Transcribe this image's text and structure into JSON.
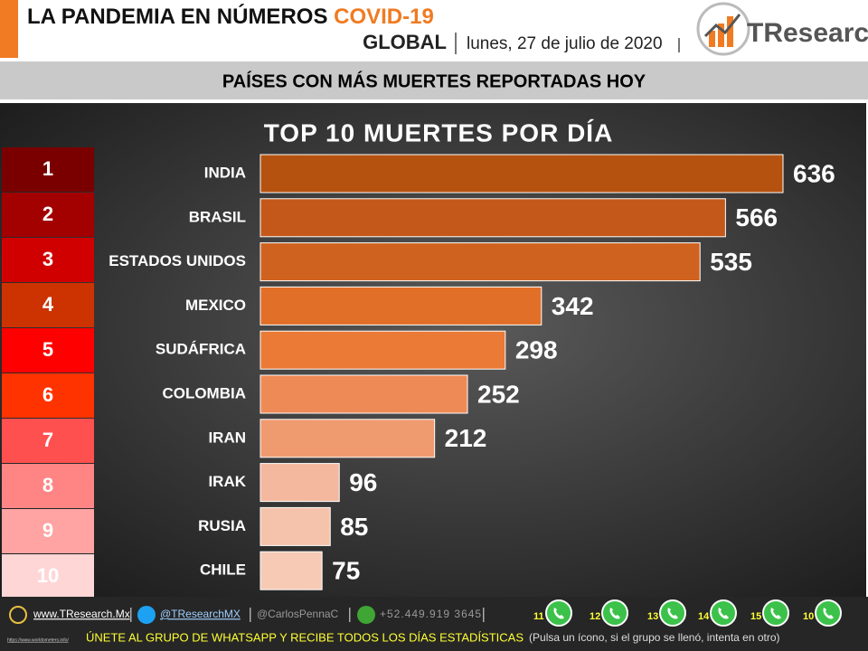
{
  "header": {
    "title": "LA PANDEMIA EN NÚMEROS",
    "title_highlight": "COVID-19",
    "scope": "GLOBAL",
    "date": "lunes, 27 de julio de 2020",
    "logo": "TResearch"
  },
  "section_title": "PAÍSES CON MÁS MUERTES REPORTADAS HOY",
  "chart_data": {
    "type": "bar",
    "orientation": "horizontal",
    "title": "TOP 10 MUERTES POR DÍA",
    "categories": [
      "INDIA",
      "BRASIL",
      "ESTADOS UNIDOS",
      "MEXICO",
      "SUDÁFRICA",
      "COLOMBIA",
      "IRAN",
      "IRAK",
      "RUSIA",
      "CHILE"
    ],
    "values": [
      636,
      566,
      535,
      342,
      298,
      252,
      212,
      96,
      85,
      75
    ],
    "colors": [
      "#b5520f",
      "#c4581a",
      "#d0621f",
      "#e26f27",
      "#ea7a35",
      "#ee8a55",
      "#f09a70",
      "#f4b89e",
      "#f5c2ab",
      "#f6cab5"
    ],
    "ranks": [
      1,
      2,
      3,
      4,
      5,
      6,
      7,
      8,
      9,
      10
    ],
    "rank_colors": [
      "#7a0000",
      "#a30000",
      "#d00000",
      "#cc3300",
      "#ff0000",
      "#ff3300",
      "#ff5050",
      "#ff8585",
      "#ffa3a3",
      "#ffd6d6"
    ]
  },
  "footer": {
    "website": "www.TResearch.Mx",
    "twitter": "@TResearchMX",
    "twitter2": "@CarlosPennaC",
    "phone": "+52.449.919 3645",
    "source_url": "https://www.worldometers.info/",
    "groups": [
      "11",
      "12",
      "13",
      "14",
      "15",
      "10"
    ],
    "cta": "ÚNETE AL GRUPO DE WHATSAPP Y RECIBE TODOS LOS DÍAS ESTADÍSTICAS",
    "cta_note": "(Pulsa un ícono, si el grupo se llenó, intenta en otro)"
  }
}
